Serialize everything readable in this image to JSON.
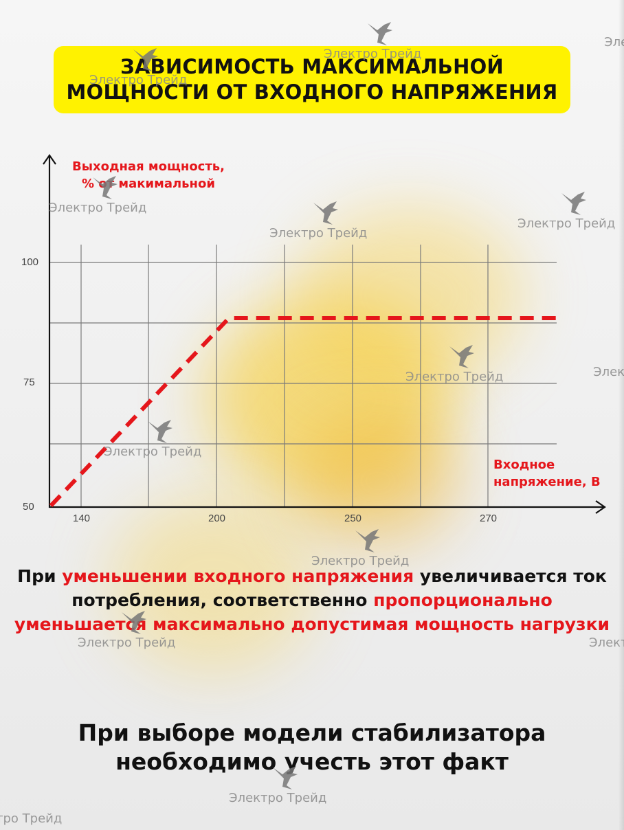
{
  "title": "ЗАВИСИМОСТЬ МАКСИМАЛЬНОЙ\nМОЩНОСТИ ОТ ВХОДНОГО НАПРЯЖЕНИЯ",
  "colors": {
    "accent_yellow": "#fff200",
    "accent_red": "#e5161b",
    "text": "#111111"
  },
  "chart_data": {
    "type": "line",
    "ylabel": "Выходная мощность,\n% от макимальной",
    "xlabel": "Входное\nнапряжение, В",
    "x_ticks": [
      "140",
      "200",
      "250",
      "270"
    ],
    "y_ticks": [
      "50",
      "75",
      "100"
    ],
    "grid": true,
    "series": [
      {
        "style": "dashed",
        "color": "#e5161b",
        "points": [
          {
            "x": "130",
            "y": 50
          },
          {
            "x": "200",
            "y": 89
          },
          {
            "x": "270+",
            "y": 89
          }
        ]
      }
    ]
  },
  "paragraph": [
    {
      "text": "При ",
      "red": false
    },
    {
      "text": "уменьшении входного напряжения",
      "red": true
    },
    {
      "text": " увеличивается ток потребления, соответственно ",
      "red": false
    },
    {
      "text": "пропорционально уменьшается максимально допустимая мощность нагрузки",
      "red": true
    }
  ],
  "footer": "При выборе модели стабилизатора\nнеобходимо учесть этот факт",
  "watermark": "Электро Трейд",
  "watermark_icon": "bird-logo-icon"
}
